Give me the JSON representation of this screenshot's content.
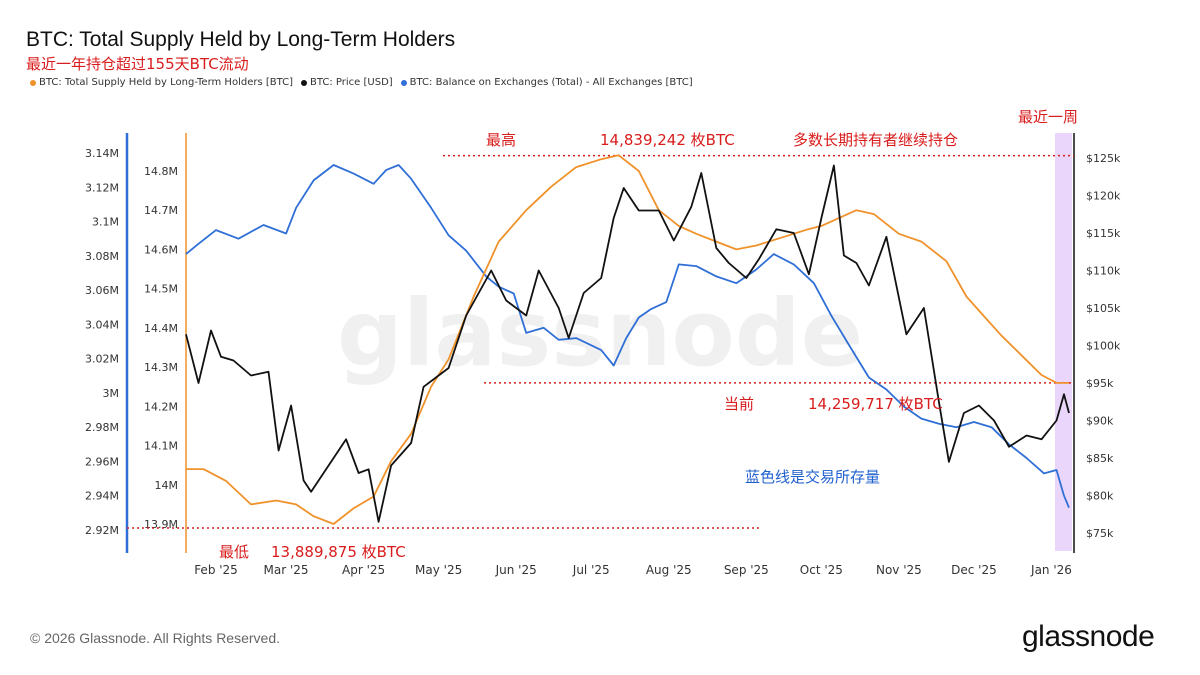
{
  "header": {
    "title": "BTC: Total Supply Held by Long-Term Holders",
    "subtitle": "最近一年持仓超过155天BTC流动"
  },
  "legend": [
    {
      "label": "BTC: Total Supply Held by Long-Term Holders [BTC]",
      "color": "#f0922b"
    },
    {
      "label": "BTC: Price [USD]",
      "color": "#111111"
    },
    {
      "label": "BTC: Balance on Exchanges (Total) - All Exchanges [BTC]",
      "color": "#2f6fd6"
    }
  ],
  "footer": {
    "copyright": "© 2026 Glassnode. All Rights Reserved.",
    "logo": "glassnode"
  },
  "watermark": "glassnode",
  "annotations": {
    "max_label": "最高",
    "max_value": "14,839,242 枚BTC",
    "holders_note": "多数长期持有者继续持仓",
    "recent_week": "最近一周",
    "current_label": "当前",
    "current_value": "14,259,717 枚BTC",
    "exchange_note": "蓝色线是交易所存量",
    "min_label": "最低",
    "min_value": "13,889,875 枚BTC"
  },
  "chart_data": {
    "type": "line",
    "title": "BTC: Total Supply Held by Long-Term Holders",
    "x_ticks": [
      "Feb '25",
      "Mar '25",
      "Apr '25",
      "May '25",
      "Jun '25",
      "Jul '25",
      "Aug '25",
      "Sep '25",
      "Oct '25",
      "Nov '25",
      "Dec '25",
      "Jan '26"
    ],
    "axes": {
      "exchange_axis": {
        "ticks": [
          "3.14M",
          "3.12M",
          "3.1M",
          "3.08M",
          "3.06M",
          "3.04M",
          "3.02M",
          "3M",
          "2.98M",
          "2.96M",
          "2.94M",
          "2.92M"
        ],
        "range": [
          2920000,
          3140000
        ]
      },
      "lth_axis": {
        "ticks": [
          "14.8M",
          "14.7M",
          "14.6M",
          "14.5M",
          "14.4M",
          "14.3M",
          "14.2M",
          "14.1M",
          "14M",
          "13.9M"
        ],
        "range": [
          13900000,
          14800000
        ]
      },
      "price_axis": {
        "ticks": [
          "$125k",
          "$120k",
          "$115k",
          "$110k",
          "$105k",
          "$100k",
          "$95k",
          "$90k",
          "$85k",
          "$80k",
          "$75k"
        ],
        "range": [
          75000,
          125000
        ]
      }
    },
    "grid": false,
    "series": [
      {
        "name": "BTC: Total Supply Held by Long-Term Holders [BTC]",
        "axis": "lth",
        "x": [
          "2025-01-20",
          "2025-01-27",
          "2025-02-05",
          "2025-02-15",
          "2025-02-25",
          "2025-03-05",
          "2025-03-12",
          "2025-03-20",
          "2025-03-28",
          "2025-04-05",
          "2025-04-12",
          "2025-04-20",
          "2025-04-28",
          "2025-05-05",
          "2025-05-15",
          "2025-05-25",
          "2025-06-05",
          "2025-06-15",
          "2025-06-25",
          "2025-07-05",
          "2025-07-12",
          "2025-07-20",
          "2025-07-28",
          "2025-08-05",
          "2025-08-12",
          "2025-08-20",
          "2025-08-28",
          "2025-09-05",
          "2025-09-15",
          "2025-09-25",
          "2025-10-01",
          "2025-10-08",
          "2025-10-15",
          "2025-10-22",
          "2025-11-01",
          "2025-11-10",
          "2025-11-20",
          "2025-11-28",
          "2025-12-05",
          "2025-12-12",
          "2025-12-20",
          "2025-12-28",
          "2026-01-03",
          "2026-01-08"
        ],
        "values": [
          14040000,
          14040000,
          14010000,
          13950000,
          13960000,
          13950000,
          13920000,
          13900000,
          13940000,
          13970000,
          14060000,
          14130000,
          14250000,
          14320000,
          14480000,
          14620000,
          14700000,
          14760000,
          14810000,
          14830000,
          14840000,
          14800000,
          14700000,
          14660000,
          14640000,
          14620000,
          14600000,
          14610000,
          14630000,
          14650000,
          14660000,
          14680000,
          14700000,
          14690000,
          14640000,
          14620000,
          14570000,
          14480000,
          14430000,
          14380000,
          14330000,
          14280000,
          14260000,
          14259717
        ]
      },
      {
        "name": "BTC: Price [USD]",
        "axis": "price",
        "x": [
          "2025-01-20",
          "2025-01-25",
          "2025-01-30",
          "2025-02-03",
          "2025-02-08",
          "2025-02-15",
          "2025-02-22",
          "2025-02-26",
          "2025-03-03",
          "2025-03-08",
          "2025-03-11",
          "2025-03-18",
          "2025-03-25",
          "2025-03-30",
          "2025-04-03",
          "2025-04-07",
          "2025-04-12",
          "2025-04-20",
          "2025-04-25",
          "2025-05-05",
          "2025-05-12",
          "2025-05-22",
          "2025-05-28",
          "2025-06-05",
          "2025-06-10",
          "2025-06-18",
          "2025-06-22",
          "2025-06-28",
          "2025-07-05",
          "2025-07-10",
          "2025-07-14",
          "2025-07-20",
          "2025-07-28",
          "2025-08-03",
          "2025-08-10",
          "2025-08-14",
          "2025-08-20",
          "2025-08-25",
          "2025-09-01",
          "2025-09-06",
          "2025-09-13",
          "2025-09-20",
          "2025-09-26",
          "2025-10-01",
          "2025-10-06",
          "2025-10-10",
          "2025-10-15",
          "2025-10-20",
          "2025-10-27",
          "2025-11-04",
          "2025-11-11",
          "2025-11-17",
          "2025-11-21",
          "2025-11-27",
          "2025-12-03",
          "2025-12-09",
          "2025-12-15",
          "2025-12-22",
          "2025-12-28",
          "2026-01-03",
          "2026-01-06",
          "2026-01-08"
        ],
        "values": [
          101500,
          95000,
          102000,
          98500,
          98000,
          96000,
          96500,
          86000,
          92000,
          82000,
          80500,
          84000,
          87500,
          83000,
          83500,
          76500,
          84000,
          87000,
          94500,
          97000,
          104000,
          110000,
          106000,
          104000,
          110000,
          105000,
          101000,
          107000,
          109000,
          117000,
          121000,
          118000,
          118000,
          114000,
          118500,
          123000,
          113000,
          111000,
          109000,
          111500,
          115500,
          115000,
          109500,
          117000,
          124000,
          112000,
          111000,
          108000,
          114500,
          101500,
          105000,
          92500,
          84500,
          91000,
          92000,
          90000,
          86500,
          88000,
          87500,
          90000,
          93500,
          91000
        ]
      },
      {
        "name": "BTC: Balance on Exchanges (Total) - All Exchanges [BTC]",
        "axis": "exchange",
        "x": [
          "2025-01-20",
          "2025-01-25",
          "2025-02-01",
          "2025-02-10",
          "2025-02-20",
          "2025-03-01",
          "2025-03-05",
          "2025-03-12",
          "2025-03-20",
          "2025-03-28",
          "2025-04-05",
          "2025-04-10",
          "2025-04-15",
          "2025-04-20",
          "2025-04-28",
          "2025-05-05",
          "2025-05-12",
          "2025-05-20",
          "2025-05-25",
          "2025-05-31",
          "2025-06-05",
          "2025-06-12",
          "2025-06-18",
          "2025-06-25",
          "2025-07-05",
          "2025-07-10",
          "2025-07-15",
          "2025-07-20",
          "2025-07-25",
          "2025-07-31",
          "2025-08-05",
          "2025-08-12",
          "2025-08-20",
          "2025-08-28",
          "2025-09-05",
          "2025-09-12",
          "2025-09-20",
          "2025-09-28",
          "2025-10-05",
          "2025-10-12",
          "2025-10-20",
          "2025-10-27",
          "2025-11-03",
          "2025-11-10",
          "2025-11-17",
          "2025-11-24",
          "2025-12-01",
          "2025-12-08",
          "2025-12-15",
          "2025-12-22",
          "2025-12-29",
          "2026-01-03",
          "2026-01-06",
          "2026-01-08"
        ],
        "values": [
          3081000,
          3087000,
          3095000,
          3090000,
          3098000,
          3093000,
          3108000,
          3124000,
          3133000,
          3128000,
          3122000,
          3130000,
          3133000,
          3125000,
          3108000,
          3092000,
          3083000,
          3068000,
          3062000,
          3058000,
          3035000,
          3038000,
          3031000,
          3032000,
          3025000,
          3016000,
          3032000,
          3044000,
          3049000,
          3053000,
          3075000,
          3074000,
          3068000,
          3064000,
          3072000,
          3081000,
          3075000,
          3064000,
          3045000,
          3028000,
          3009000,
          3002000,
          2992000,
          2985000,
          2982000,
          2980000,
          2983000,
          2980000,
          2970000,
          2962000,
          2953000,
          2955000,
          2940000,
          2933000
        ]
      }
    ],
    "reference_lines": [
      {
        "label": "最高",
        "value": 14839242,
        "axis": "lth"
      },
      {
        "label": "当前",
        "value": 14259717,
        "axis": "lth"
      },
      {
        "label": "最低",
        "value": 13889875,
        "axis": "lth"
      }
    ],
    "highlight_range": {
      "label": "最近一周",
      "from": "2026-01-01",
      "to": "2026-01-08"
    }
  }
}
